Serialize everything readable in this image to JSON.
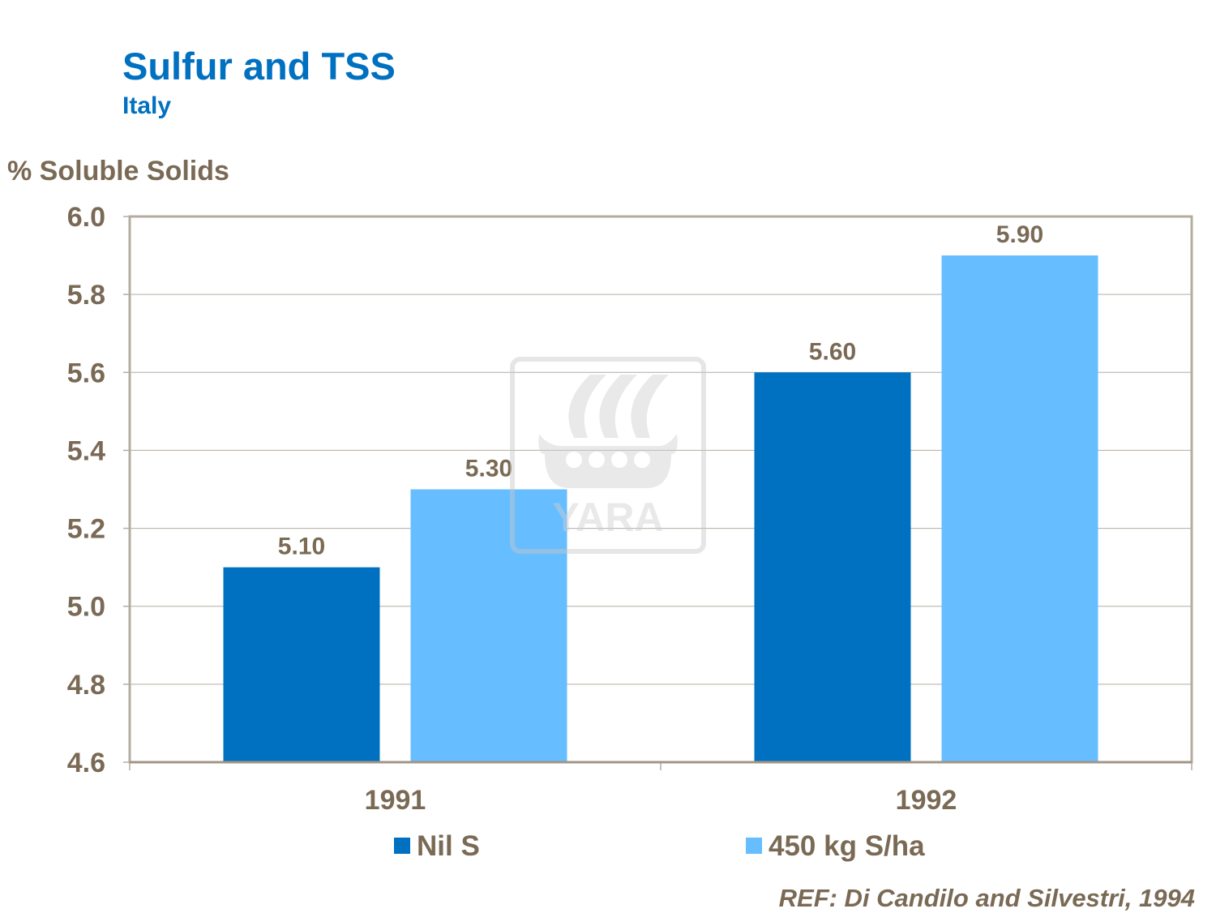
{
  "chart_data": {
    "type": "bar",
    "title": "Sulfur and TSS",
    "subtitle": "Italy",
    "ylabel": "% Soluble Solids",
    "xlabel": "",
    "categories": [
      "1991",
      "1992"
    ],
    "series": [
      {
        "name": "Nil S",
        "values": [
          5.1,
          5.6
        ],
        "labels": [
          "5.10",
          "5.60"
        ],
        "color": "#0070c0"
      },
      {
        "name": "450 kg S/ha",
        "values": [
          5.3,
          5.9
        ],
        "labels": [
          "5.30",
          "5.90"
        ],
        "color": "#66bdff"
      }
    ],
    "ylim": [
      4.6,
      6.0
    ],
    "yticks": [
      "4.6",
      "4.8",
      "5.0",
      "5.2",
      "5.4",
      "5.6",
      "5.8",
      "6.0"
    ],
    "grid": true,
    "legend": "bottom",
    "reference": "REF: Di Candilo and Silvestri, 1994",
    "watermark": "YARA"
  }
}
